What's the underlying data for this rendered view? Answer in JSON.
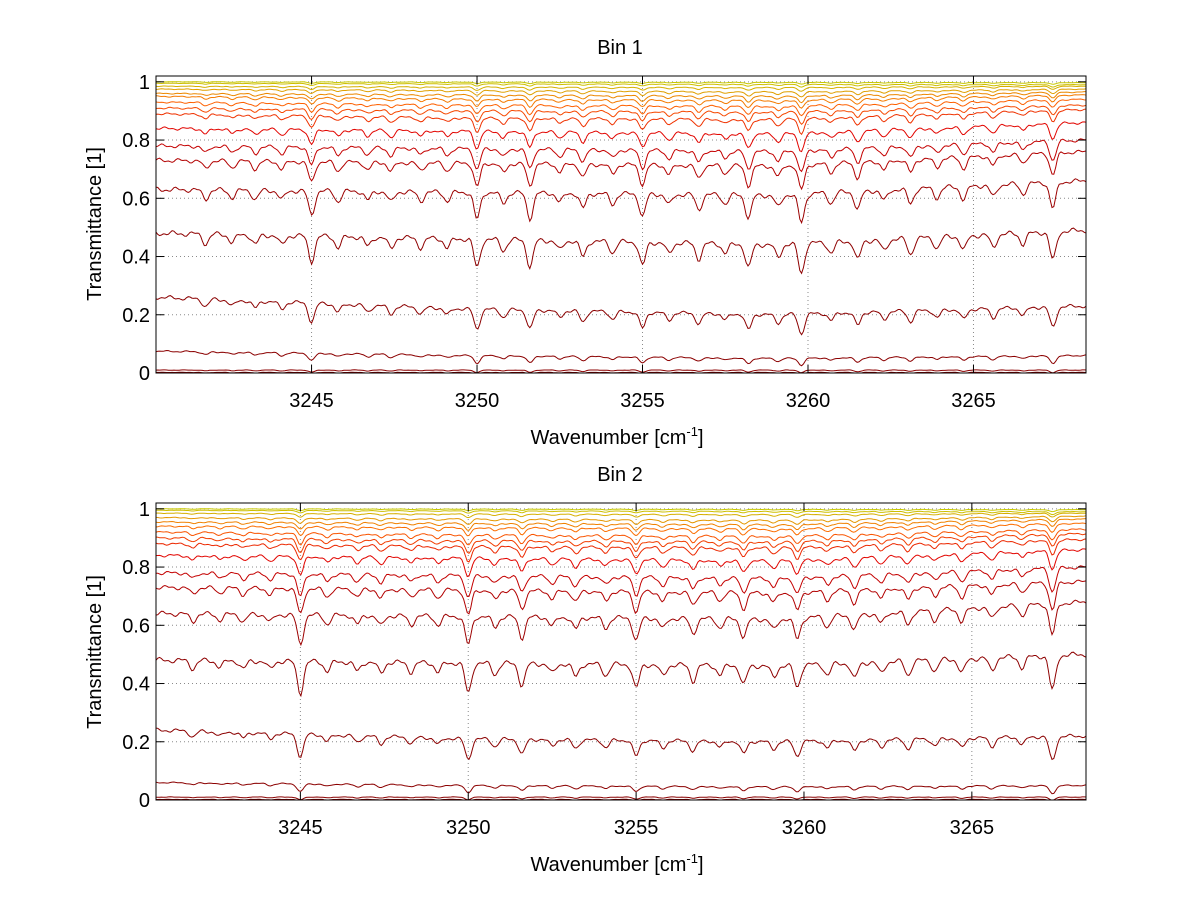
{
  "chart_data": [
    {
      "type": "line",
      "title": "Bin 1",
      "xlabel": "Wavenumber [cm",
      "xlabel_sup": "-1",
      "xlabel_end": "]",
      "ylabel": "Transmittance [1]",
      "xlim": [
        3240.3,
        3268.4
      ],
      "ylim": [
        0,
        1.02
      ],
      "x_ticks": [
        3245,
        3250,
        3255,
        3260,
        3265
      ],
      "x_tick_labels": [
        "3245",
        "3250",
        "3255",
        "3260",
        "3265"
      ],
      "y_ticks": [
        0,
        0.2,
        0.4,
        0.6,
        0.8,
        1
      ],
      "y_tick_labels": [
        "0",
        "0.2",
        "0.4",
        "0.6",
        "0.8",
        "1"
      ],
      "grid": true,
      "line_color_scale": [
        "#8b0000",
        "#e00000",
        "#ff6600",
        "#c8c800"
      ],
      "absorption_lines": [
        {
          "x": 3241.8,
          "depth": 0.3
        },
        {
          "x": 3242.6,
          "depth": 0.25
        },
        {
          "x": 3243.3,
          "depth": 0.3
        },
        {
          "x": 3244.1,
          "depth": 0.3
        },
        {
          "x": 3245.0,
          "depth": 0.8
        },
        {
          "x": 3245.8,
          "depth": 0.35
        },
        {
          "x": 3246.7,
          "depth": 0.3
        },
        {
          "x": 3247.4,
          "depth": 0.35
        },
        {
          "x": 3248.3,
          "depth": 0.3
        },
        {
          "x": 3249.1,
          "depth": 0.3
        },
        {
          "x": 3250.0,
          "depth": 0.9
        },
        {
          "x": 3250.8,
          "depth": 0.35
        },
        {
          "x": 3251.6,
          "depth": 0.85
        },
        {
          "x": 3252.5,
          "depth": 0.3
        },
        {
          "x": 3253.2,
          "depth": 0.5
        },
        {
          "x": 3254.1,
          "depth": 0.35
        },
        {
          "x": 3255.0,
          "depth": 0.75
        },
        {
          "x": 3255.8,
          "depth": 0.35
        },
        {
          "x": 3256.7,
          "depth": 0.5
        },
        {
          "x": 3257.5,
          "depth": 0.3
        },
        {
          "x": 3258.2,
          "depth": 0.75
        },
        {
          "x": 3259.1,
          "depth": 0.4
        },
        {
          "x": 3259.8,
          "depth": 0.95
        },
        {
          "x": 3260.7,
          "depth": 0.35
        },
        {
          "x": 3261.5,
          "depth": 0.6
        },
        {
          "x": 3262.3,
          "depth": 0.35
        },
        {
          "x": 3263.1,
          "depth": 0.5
        },
        {
          "x": 3263.9,
          "depth": 0.35
        },
        {
          "x": 3264.7,
          "depth": 0.45
        },
        {
          "x": 3265.6,
          "depth": 0.4
        },
        {
          "x": 3266.5,
          "depth": 0.35
        },
        {
          "x": 3267.4,
          "depth": 0.9
        }
      ],
      "series": [
        {
          "values": [
            1.0,
            0.999,
            0.998,
            0.997
          ]
        },
        {
          "values": [
            0.995,
            0.993,
            0.991,
            0.99
          ]
        },
        {
          "values": [
            0.985,
            0.982,
            0.98,
            0.985
          ]
        },
        {
          "values": [
            0.975,
            0.97,
            0.965,
            0.975
          ]
        },
        {
          "values": [
            0.96,
            0.955,
            0.95,
            0.965
          ]
        },
        {
          "values": [
            0.95,
            0.94,
            0.935,
            0.955
          ]
        },
        {
          "values": [
            0.93,
            0.92,
            0.915,
            0.94
          ]
        },
        {
          "values": [
            0.91,
            0.9,
            0.895,
            0.92
          ]
        },
        {
          "values": [
            0.89,
            0.875,
            0.87,
            0.905
          ]
        },
        {
          "values": [
            0.84,
            0.83,
            0.82,
            0.86
          ]
        },
        {
          "values": [
            0.78,
            0.77,
            0.76,
            0.8
          ]
        },
        {
          "values": [
            0.73,
            0.72,
            0.71,
            0.76
          ]
        },
        {
          "values": [
            0.63,
            0.62,
            0.61,
            0.66
          ]
        },
        {
          "values": [
            0.48,
            0.46,
            0.44,
            0.49
          ]
        },
        {
          "values": [
            0.26,
            0.22,
            0.2,
            0.23
          ]
        },
        {
          "values": [
            0.075,
            0.06,
            0.05,
            0.06
          ]
        },
        {
          "values": [
            0.01,
            0.01,
            0.01,
            0.01
          ]
        },
        {
          "values": [
            0.002,
            0.002,
            0.002,
            0.002
          ]
        }
      ]
    },
    {
      "type": "line",
      "title": "Bin 2",
      "xlabel": "Wavenumber [cm",
      "xlabel_sup": "-1",
      "xlabel_end": "]",
      "ylabel": "Transmittance [1]",
      "xlim": [
        3240.7,
        3268.4
      ],
      "ylim": [
        0,
        1.02
      ],
      "x_ticks": [
        3245,
        3250,
        3255,
        3260,
        3265
      ],
      "x_tick_labels": [
        "3245",
        "3250",
        "3255",
        "3260",
        "3265"
      ],
      "y_ticks": [
        0,
        0.2,
        0.4,
        0.6,
        0.8,
        1
      ],
      "y_tick_labels": [
        "0",
        "0.2",
        "0.4",
        "0.6",
        "0.8",
        "1"
      ],
      "grid": true,
      "line_color_scale": [
        "#8b0000",
        "#e00000",
        "#ff6600",
        "#c8c800"
      ],
      "absorption_lines": [
        {
          "x": 3241.8,
          "depth": 0.25
        },
        {
          "x": 3242.6,
          "depth": 0.2
        },
        {
          "x": 3243.3,
          "depth": 0.25
        },
        {
          "x": 3244.1,
          "depth": 0.25
        },
        {
          "x": 3245.0,
          "depth": 1.0
        },
        {
          "x": 3245.8,
          "depth": 0.3
        },
        {
          "x": 3246.7,
          "depth": 0.3
        },
        {
          "x": 3247.4,
          "depth": 0.35
        },
        {
          "x": 3248.3,
          "depth": 0.3
        },
        {
          "x": 3249.1,
          "depth": 0.3
        },
        {
          "x": 3250.0,
          "depth": 0.95
        },
        {
          "x": 3250.8,
          "depth": 0.35
        },
        {
          "x": 3251.6,
          "depth": 0.7
        },
        {
          "x": 3252.5,
          "depth": 0.3
        },
        {
          "x": 3253.2,
          "depth": 0.4
        },
        {
          "x": 3254.1,
          "depth": 0.35
        },
        {
          "x": 3255.0,
          "depth": 0.75
        },
        {
          "x": 3255.8,
          "depth": 0.35
        },
        {
          "x": 3256.7,
          "depth": 0.5
        },
        {
          "x": 3257.5,
          "depth": 0.3
        },
        {
          "x": 3258.2,
          "depth": 0.6
        },
        {
          "x": 3259.1,
          "depth": 0.35
        },
        {
          "x": 3259.8,
          "depth": 0.7
        },
        {
          "x": 3260.7,
          "depth": 0.35
        },
        {
          "x": 3261.5,
          "depth": 0.5
        },
        {
          "x": 3262.3,
          "depth": 0.35
        },
        {
          "x": 3263.1,
          "depth": 0.45
        },
        {
          "x": 3263.9,
          "depth": 0.35
        },
        {
          "x": 3264.7,
          "depth": 0.45
        },
        {
          "x": 3265.6,
          "depth": 0.4
        },
        {
          "x": 3266.5,
          "depth": 0.35
        },
        {
          "x": 3267.4,
          "depth": 1.1
        }
      ],
      "series": [
        {
          "values": [
            1.0,
            0.999,
            0.998,
            0.997
          ]
        },
        {
          "values": [
            0.995,
            0.993,
            0.991,
            0.99
          ]
        },
        {
          "values": [
            0.985,
            0.982,
            0.98,
            0.985
          ]
        },
        {
          "values": [
            0.97,
            0.965,
            0.96,
            0.975
          ]
        },
        {
          "values": [
            0.955,
            0.95,
            0.945,
            0.965
          ]
        },
        {
          "values": [
            0.94,
            0.935,
            0.93,
            0.95
          ]
        },
        {
          "values": [
            0.92,
            0.91,
            0.905,
            0.93
          ]
        },
        {
          "values": [
            0.9,
            0.89,
            0.885,
            0.915
          ]
        },
        {
          "values": [
            0.88,
            0.87,
            0.865,
            0.895
          ]
        },
        {
          "values": [
            0.84,
            0.83,
            0.82,
            0.86
          ]
        },
        {
          "values": [
            0.78,
            0.77,
            0.76,
            0.8
          ]
        },
        {
          "values": [
            0.73,
            0.72,
            0.71,
            0.75
          ]
        },
        {
          "values": [
            0.64,
            0.63,
            0.62,
            0.68
          ]
        },
        {
          "values": [
            0.48,
            0.47,
            0.46,
            0.5
          ]
        },
        {
          "values": [
            0.24,
            0.21,
            0.2,
            0.22
          ]
        },
        {
          "values": [
            0.06,
            0.05,
            0.045,
            0.05
          ]
        },
        {
          "values": [
            0.01,
            0.01,
            0.01,
            0.01
          ]
        },
        {
          "values": [
            0.002,
            0.002,
            0.002,
            0.002
          ]
        }
      ]
    }
  ]
}
